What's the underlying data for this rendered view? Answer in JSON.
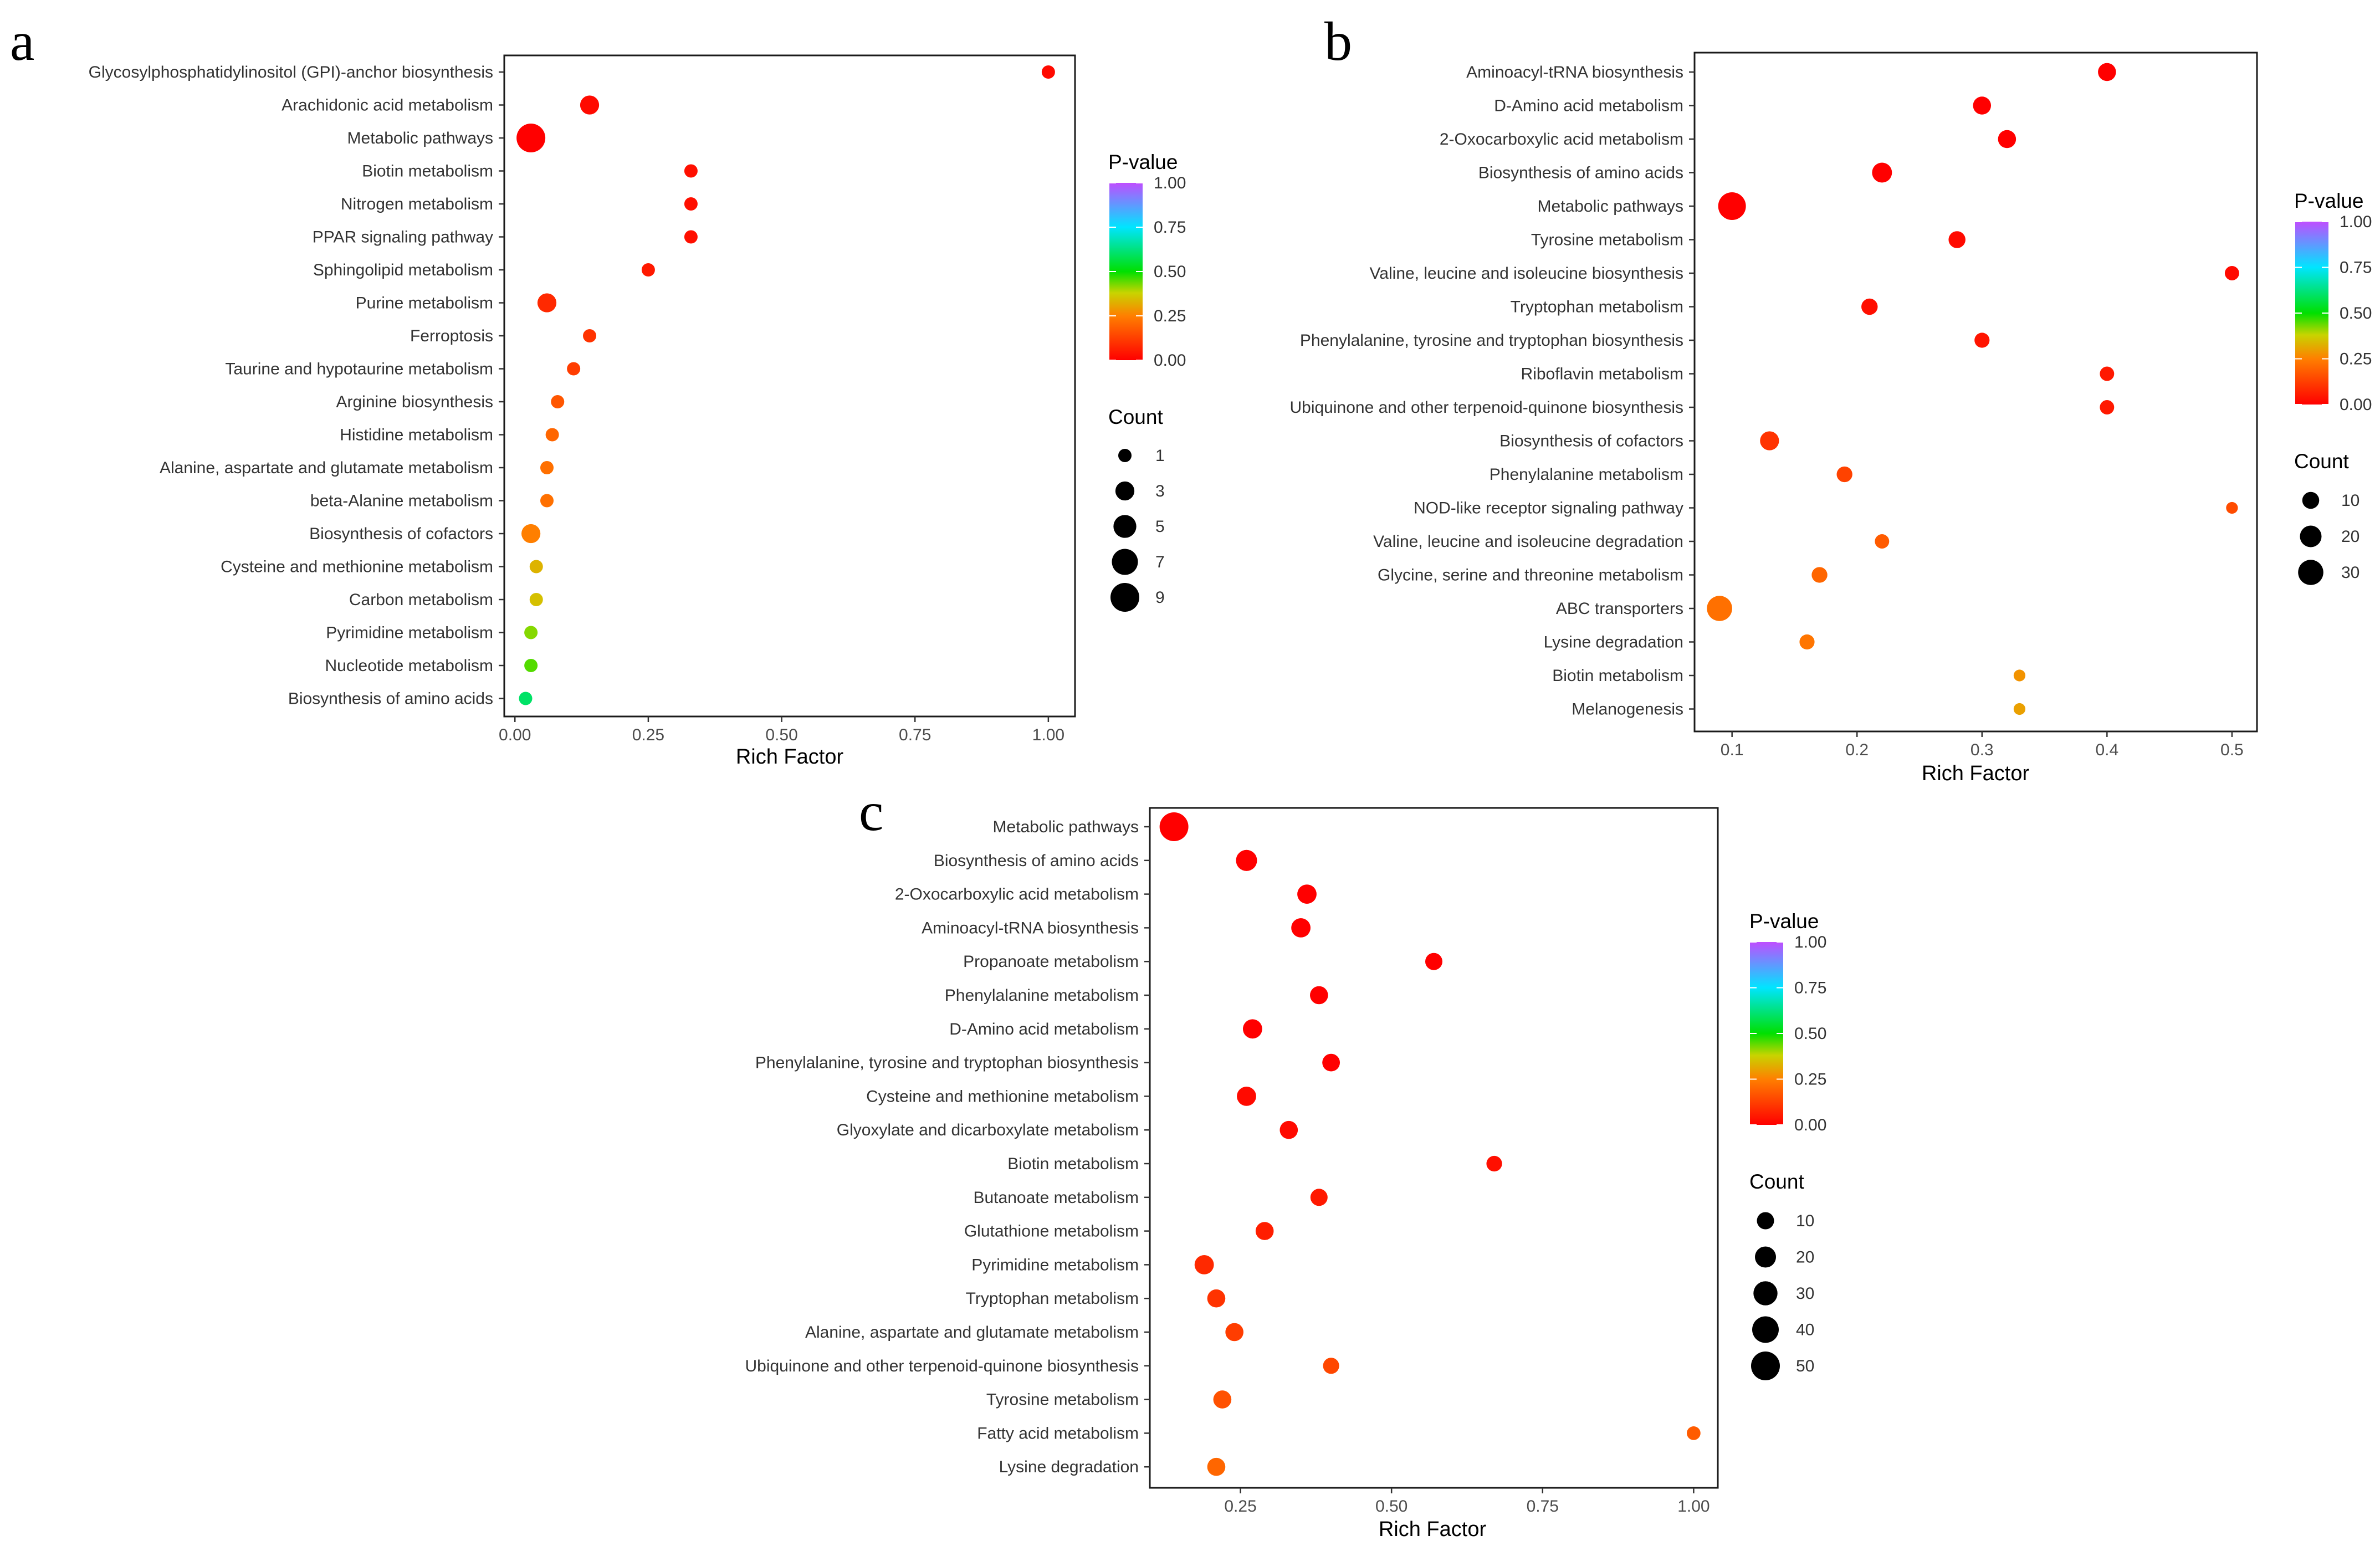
{
  "chart_data": [
    {
      "panel": "a",
      "type": "scatter",
      "xlabel": "Rich Factor",
      "xlim": [
        -0.02,
        1.05
      ],
      "xticks": [
        "0.00",
        "0.25",
        "0.50",
        "0.75",
        "1.00"
      ],
      "xtick_values": [
        0,
        0.25,
        0.5,
        0.75,
        1.0
      ],
      "categories": [
        "Glycosylphosphatidylinositol (GPI)-anchor biosynthesis",
        "Arachidonic acid metabolism",
        "Metabolic pathways",
        "Biotin metabolism",
        "Nitrogen metabolism",
        "PPAR signaling pathway",
        "Sphingolipid metabolism",
        "Purine metabolism",
        "Ferroptosis",
        "Taurine and hypotaurine metabolism",
        "Arginine biosynthesis",
        "Histidine metabolism",
        "Alanine, aspartate and glutamate metabolism",
        "beta-Alanine metabolism",
        "Biosynthesis of cofactors",
        "Cysteine and methionine metabolism",
        "Carbon metabolism",
        "Pyrimidine metabolism",
        "Nucleotide metabolism",
        "Biosynthesis of amino acids"
      ],
      "x": [
        1.0,
        0.14,
        0.03,
        0.33,
        0.33,
        0.33,
        0.25,
        0.06,
        0.14,
        0.11,
        0.08,
        0.07,
        0.06,
        0.06,
        0.03,
        0.04,
        0.04,
        0.03,
        0.03,
        0.02
      ],
      "count": [
        1,
        3,
        9,
        1,
        1,
        1,
        1,
        3,
        1,
        1,
        1,
        1,
        1,
        1,
        3,
        1,
        1,
        1,
        1,
        1
      ],
      "pvalue": [
        0.02,
        0.02,
        0.0,
        0.03,
        0.03,
        0.03,
        0.05,
        0.08,
        0.1,
        0.12,
        0.17,
        0.2,
        0.22,
        0.22,
        0.25,
        0.33,
        0.35,
        0.42,
        0.45,
        0.6
      ],
      "legend": {
        "color_title": "P-value",
        "color_ticks": [
          "1.00",
          "0.75",
          "0.50",
          "0.25",
          "0.00"
        ],
        "size_title": "Count",
        "size_ticks": [
          "1",
          "3",
          "5",
          "7",
          "9"
        ],
        "size_values": [
          1,
          3,
          5,
          7,
          9
        ],
        "size_max": 9
      }
    },
    {
      "panel": "b",
      "type": "scatter",
      "xlabel": "Rich Factor",
      "xlim": [
        0.07,
        0.52
      ],
      "xticks": [
        "0.1",
        "0.2",
        "0.3",
        "0.4",
        "0.5"
      ],
      "xtick_values": [
        0.1,
        0.2,
        0.3,
        0.4,
        0.5
      ],
      "categories": [
        "Aminoacyl-tRNA biosynthesis",
        "D-Amino acid metabolism",
        "2-Oxocarboxylic acid metabolism",
        "Biosynthesis of amino acids",
        "Metabolic pathways",
        "Tyrosine metabolism",
        "Valine, leucine and isoleucine biosynthesis",
        "Tryptophan metabolism",
        "Phenylalanine, tyrosine and tryptophan biosynthesis",
        "Riboflavin metabolism",
        "Ubiquinone and other terpenoid-quinone biosynthesis",
        "Biosynthesis of cofactors",
        "Phenylalanine metabolism",
        "NOD-like receptor signaling pathway",
        "Valine, leucine and isoleucine degradation",
        "Glycine, serine and threonine metabolism",
        "ABC transporters",
        "Lysine degradation",
        "Biotin metabolism",
        "Melanogenesis"
      ],
      "x": [
        0.4,
        0.3,
        0.32,
        0.22,
        0.1,
        0.28,
        0.5,
        0.21,
        0.3,
        0.4,
        0.4,
        0.13,
        0.19,
        0.5,
        0.22,
        0.17,
        0.09,
        0.16,
        0.33,
        0.33
      ],
      "count": [
        12,
        12,
        12,
        16,
        38,
        10,
        6,
        9,
        7,
        6,
        6,
        14,
        8,
        3,
        6,
        8,
        30,
        7,
        3,
        3
      ],
      "pvalue": [
        0.0,
        0.0,
        0.0,
        0.0,
        0.0,
        0.02,
        0.02,
        0.03,
        0.04,
        0.05,
        0.05,
        0.1,
        0.13,
        0.15,
        0.18,
        0.2,
        0.22,
        0.23,
        0.28,
        0.3
      ],
      "legend": {
        "color_title": "P-value",
        "color_ticks": [
          "1.00",
          "0.75",
          "0.50",
          "0.25",
          "0.00"
        ],
        "size_title": "Count",
        "size_ticks": [
          "10",
          "20",
          "30"
        ],
        "size_values": [
          10,
          20,
          30
        ],
        "size_max": 38
      }
    },
    {
      "panel": "c",
      "type": "scatter",
      "xlabel": "Rich Factor",
      "xlim": [
        0.1,
        1.04
      ],
      "xticks": [
        "0.25",
        "0.50",
        "0.75",
        "1.00"
      ],
      "xtick_values": [
        0.25,
        0.5,
        0.75,
        1.0
      ],
      "categories": [
        "Metabolic pathways",
        "Biosynthesis of amino acids",
        "2-Oxocarboxylic acid metabolism",
        "Aminoacyl-tRNA biosynthesis",
        "Propanoate metabolism",
        "Phenylalanine metabolism",
        "D-Amino acid metabolism",
        "Phenylalanine, tyrosine and tryptophan biosynthesis",
        "Cysteine and methionine metabolism",
        "Glyoxylate and dicarboxylate metabolism",
        "Biotin metabolism",
        "Butanoate metabolism",
        "Glutathione metabolism",
        "Pyrimidine metabolism",
        "Tryptophan metabolism",
        "Alanine, aspartate and glutamate metabolism",
        "Ubiquinone and other terpenoid-quinone biosynthesis",
        "Tyrosine metabolism",
        "Fatty acid metabolism",
        "Lysine degradation"
      ],
      "x": [
        0.14,
        0.26,
        0.36,
        0.35,
        0.57,
        0.38,
        0.27,
        0.4,
        0.26,
        0.33,
        0.67,
        0.38,
        0.29,
        0.19,
        0.21,
        0.24,
        0.4,
        0.22,
        1.0,
        0.21
      ],
      "count": [
        50,
        20,
        15,
        15,
        10,
        12,
        15,
        11,
        15,
        12,
        7,
        10,
        12,
        15,
        12,
        12,
        8,
        12,
        4,
        12
      ],
      "pvalue": [
        0.0,
        0.0,
        0.0,
        0.0,
        0.0,
        0.0,
        0.0,
        0.0,
        0.02,
        0.02,
        0.03,
        0.05,
        0.06,
        0.08,
        0.1,
        0.12,
        0.14,
        0.16,
        0.18,
        0.2
      ],
      "legend": {
        "color_title": "P-value",
        "color_ticks": [
          "1.00",
          "0.75",
          "0.50",
          "0.25",
          "0.00"
        ],
        "size_title": "Count",
        "size_ticks": [
          "10",
          "20",
          "30",
          "40",
          "50"
        ],
        "size_values": [
          10,
          20,
          30,
          40,
          50
        ],
        "size_max": 50
      }
    }
  ]
}
